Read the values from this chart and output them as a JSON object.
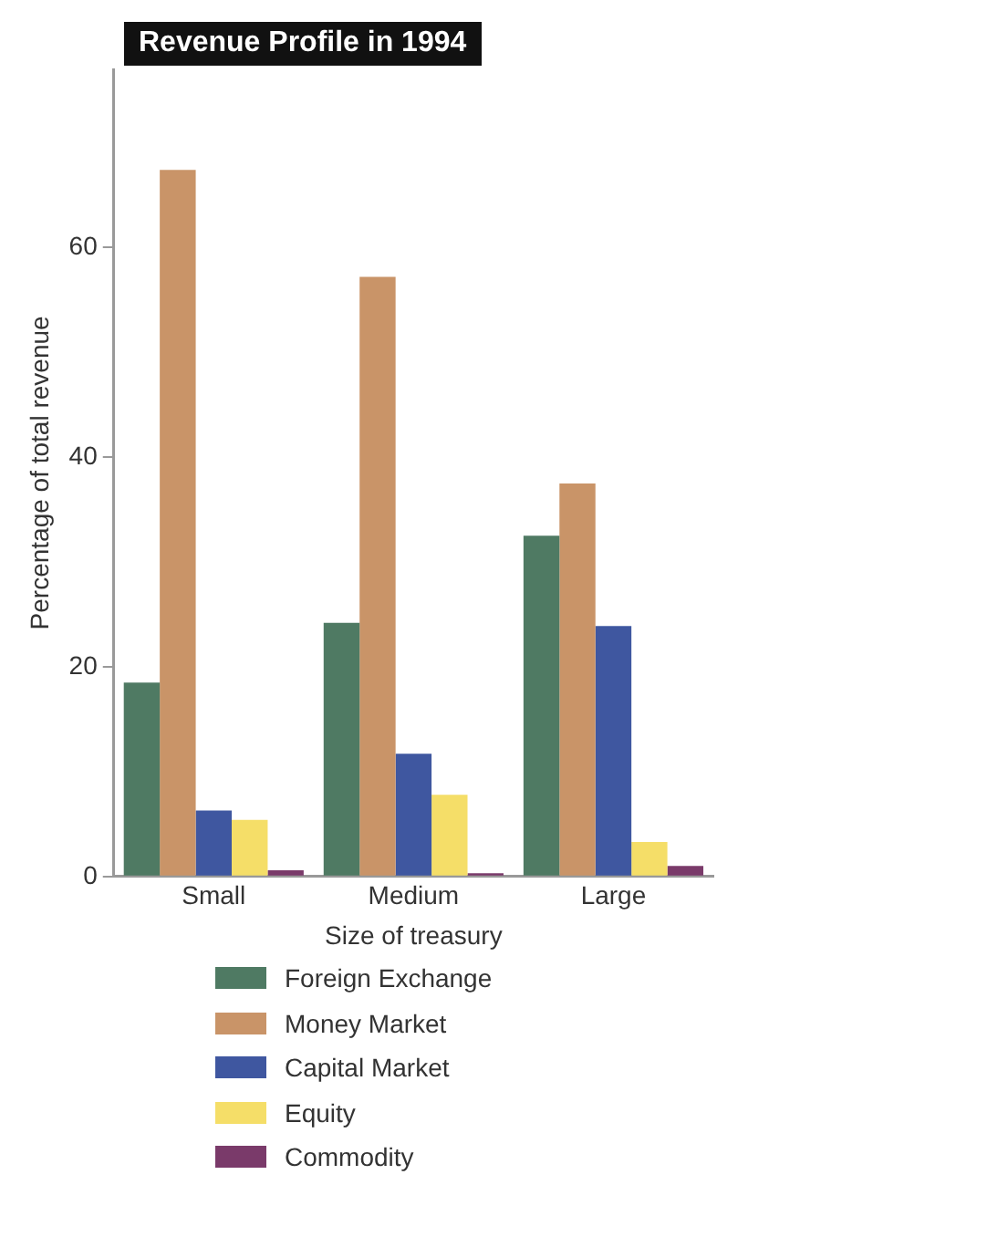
{
  "chart_data": {
    "type": "bar",
    "title": "Revenue Profile in 1994",
    "xlabel": "Size of treasury",
    "ylabel": "Percentage of total revenue",
    "categories": [
      "Small",
      "Medium",
      "Large"
    ],
    "series": [
      {
        "name": "Foreign Exchange",
        "color": "#4f7a63",
        "values": [
          18.5,
          24.2,
          32.5
        ]
      },
      {
        "name": "Money Market",
        "color": "#c99468",
        "values": [
          67.4,
          57.2,
          37.5
        ]
      },
      {
        "name": "Capital Market",
        "color": "#3f57a0",
        "values": [
          6.3,
          11.7,
          23.9
        ]
      },
      {
        "name": "Equity",
        "color": "#f5de68",
        "values": [
          5.4,
          7.8,
          3.3
        ]
      },
      {
        "name": "Commodity",
        "color": "#7a3a6a",
        "values": [
          0.6,
          0.3,
          1.0
        ]
      }
    ],
    "ylim": [
      0,
      77
    ],
    "yticks": [
      0,
      20,
      40,
      60
    ],
    "grid": false,
    "legend": "bottom"
  }
}
